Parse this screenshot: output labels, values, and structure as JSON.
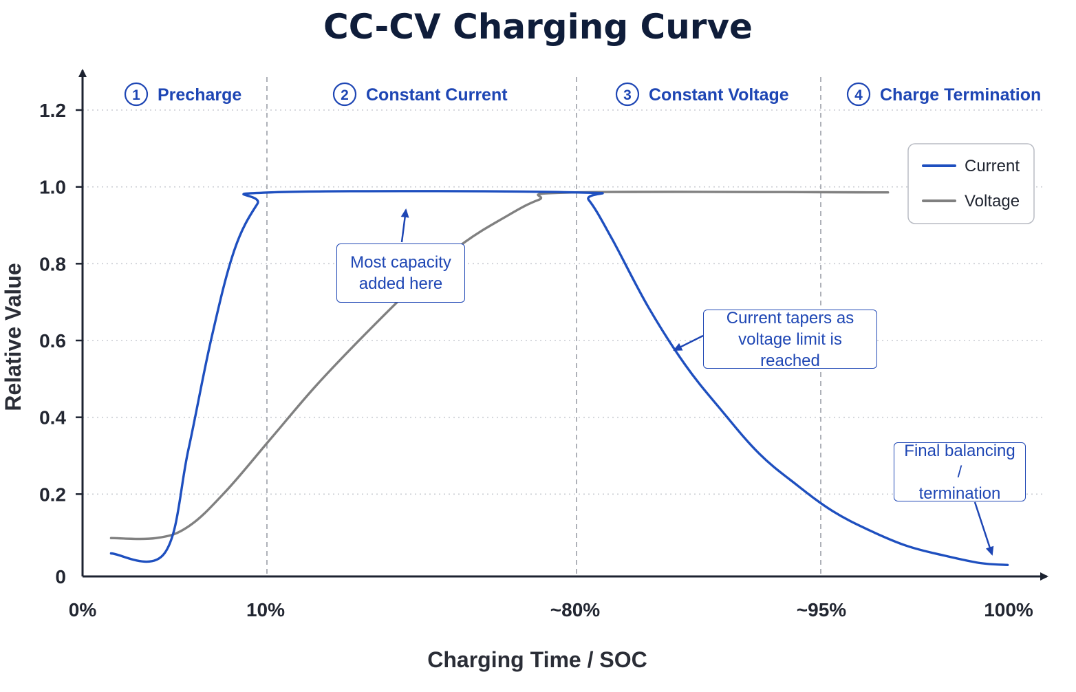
{
  "chart_data": {
    "type": "line",
    "title": "CC-CV Charging Curve",
    "xlabel": "Charging Time / SOC",
    "ylabel": "Relative Value",
    "ylim": [
      0,
      1.3
    ],
    "y_ticks": [
      "0",
      "0.2",
      "0.4",
      "0.6",
      "0.8",
      "1.0",
      "1.2"
    ],
    "x_ticks": [
      "0%",
      "10%",
      "~80%",
      "~95%",
      "100%"
    ],
    "grid": true,
    "legend_position": "top-right",
    "phases": [
      {
        "number": "1",
        "label": "Precharge"
      },
      {
        "number": "2",
        "label": "Constant Current"
      },
      {
        "number": "3",
        "label": "Constant Voltage"
      },
      {
        "number": "4",
        "label": "Charge Termination"
      }
    ],
    "series": [
      {
        "name": "Current",
        "color": "#1e4fbf",
        "points": [
          [
            0.016,
            0.06
          ],
          [
            0.074,
            0.06
          ],
          [
            0.1,
            0.33
          ],
          [
            0.125,
            0.62
          ],
          [
            0.15,
            0.85
          ],
          [
            0.175,
            0.97
          ],
          [
            0.19,
            1.0
          ],
          [
            0.52,
            1.0
          ],
          [
            0.535,
            0.98
          ],
          [
            0.56,
            0.88
          ],
          [
            0.6,
            0.7
          ],
          [
            0.64,
            0.55
          ],
          [
            0.68,
            0.43
          ],
          [
            0.72,
            0.32
          ],
          [
            0.76,
            0.24
          ],
          [
            0.8,
            0.17
          ],
          [
            0.84,
            0.12
          ],
          [
            0.88,
            0.08
          ],
          [
            0.92,
            0.055
          ],
          [
            0.96,
            0.035
          ],
          [
            0.99,
            0.03
          ]
        ]
      },
      {
        "name": "Voltage",
        "color": "#808080",
        "points": [
          [
            0.016,
            0.1
          ],
          [
            0.065,
            0.1
          ],
          [
            0.1,
            0.13
          ],
          [
            0.14,
            0.22
          ],
          [
            0.19,
            0.36
          ],
          [
            0.24,
            0.5
          ],
          [
            0.3,
            0.65
          ],
          [
            0.36,
            0.79
          ],
          [
            0.4,
            0.87
          ],
          [
            0.44,
            0.93
          ],
          [
            0.48,
            0.98
          ],
          [
            0.52,
            1.0
          ],
          [
            0.86,
            1.0
          ]
        ]
      }
    ],
    "annotations": [
      {
        "text_line1": "Most capacity",
        "text_line2": "added here"
      },
      {
        "text_line1": "Current tapers as",
        "text_line2": "voltage limit is reached"
      },
      {
        "text_line1": "Final balancing /",
        "text_line2": "termination"
      }
    ]
  }
}
